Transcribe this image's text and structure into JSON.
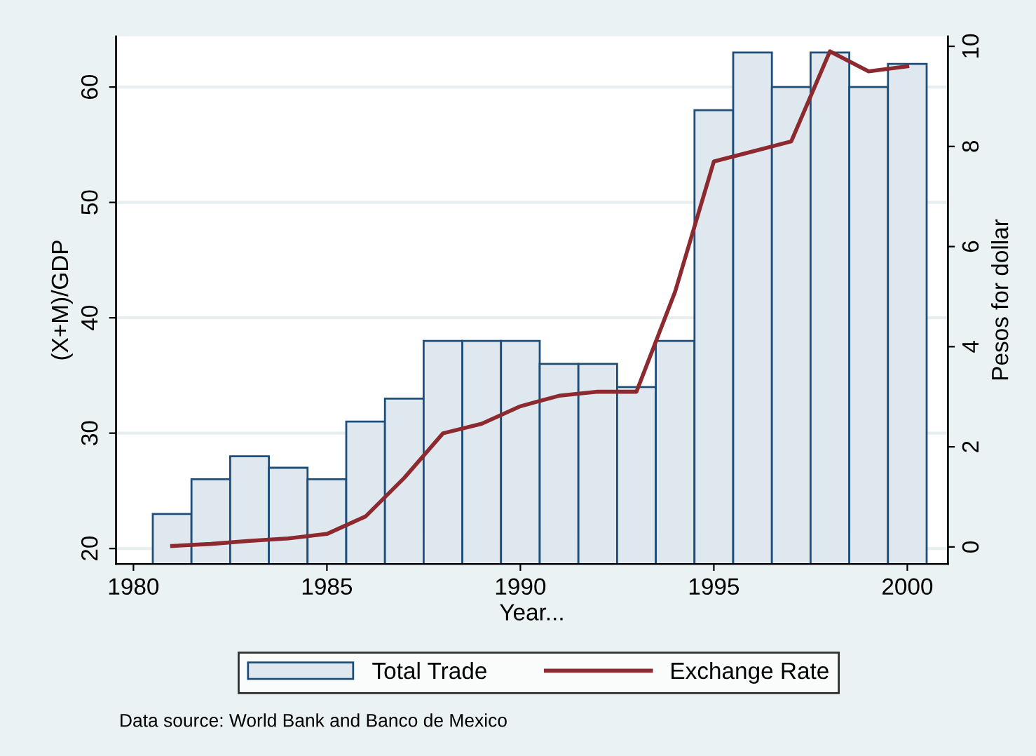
{
  "chart_data": {
    "type": "bar",
    "xlabel": "Year...",
    "ylabel": "(X+M)/GDP",
    "y2label": "Pesos for dollar",
    "x": [
      1981,
      1982,
      1983,
      1984,
      1985,
      1986,
      1987,
      1988,
      1989,
      1990,
      1991,
      1992,
      1993,
      1994,
      1995,
      1996,
      1997,
      1998,
      1999,
      2000
    ],
    "series": [
      {
        "name": "Total Trade",
        "color": "#dfe8ef",
        "values": [
          23,
          26,
          28,
          27,
          26,
          31,
          33,
          38,
          38,
          38,
          36,
          36,
          34,
          38,
          58,
          63,
          60,
          63,
          60,
          62
        ]
      },
      {
        "name": "Exchange Rate",
        "type": "line",
        "axis": "y2",
        "color": "#8c2a30",
        "values": [
          0.02,
          0.06,
          0.12,
          0.17,
          0.26,
          0.61,
          1.38,
          2.27,
          2.46,
          2.81,
          3.02,
          3.1,
          3.1,
          5.1,
          7.7,
          7.9,
          8.1,
          9.9,
          9.5,
          9.6
        ]
      }
    ],
    "xlim": [
      1979.55,
      2001.05
    ],
    "xticks": [
      1980,
      1985,
      1990,
      1995,
      2000
    ],
    "ylim": [
      18.66,
      64.4
    ],
    "yticks": [
      20,
      30,
      40,
      50,
      60
    ],
    "y2lim": [
      -0.34,
      10.2
    ],
    "y2ticks": [
      0,
      2,
      4,
      6,
      8,
      10
    ],
    "grid": "y",
    "legend": "bottom",
    "marker": "none",
    "line_style": "solid",
    "annotations": [
      "Data source: World Bank and Banco de Mexico"
    ]
  }
}
